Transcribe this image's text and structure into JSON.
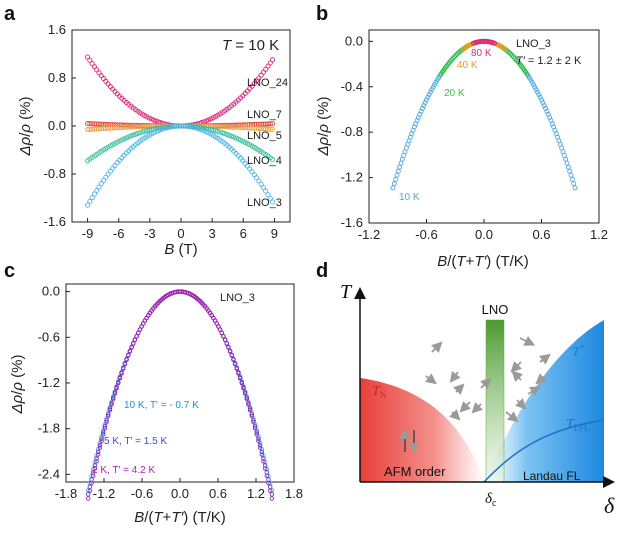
{
  "panels": {
    "a": "a",
    "b": "b",
    "c": "c",
    "d": "d"
  },
  "chart_data": [
    {
      "type": "scatter",
      "panel": "a",
      "xlabel_text": "B (T)",
      "ylabel_text": "Δρ/ρ (%)",
      "xticks": [
        "-9",
        "-6",
        "-3",
        "0",
        "3",
        "6",
        "9"
      ],
      "yticks": [
        "-1.6",
        "-0.8",
        "0.0",
        "0.8",
        "1.6"
      ],
      "xlim": [
        -10.5,
        10.5
      ],
      "ylim": [
        -1.6,
        1.6
      ],
      "annotation": "T = 10 K",
      "series": [
        {
          "name": "LNO_24",
          "color": "#e0267a",
          "value_at_9T": 1.15
        },
        {
          "name": "LNO_7",
          "color": "#e0483a",
          "value_at_9T": 0.04
        },
        {
          "name": "LNO_5",
          "color": "#e8a24a",
          "value_at_9T": -0.06
        },
        {
          "name": "LNO_4",
          "color": "#3cbf9a",
          "value_at_9T": -0.58
        },
        {
          "name": "LNO_3",
          "color": "#4fb4e8",
          "value_at_9T": -1.32
        }
      ]
    },
    {
      "type": "scatter",
      "panel": "b",
      "xlabel_text": "B/(T+T′) (T/K)",
      "ylabel_text": "Δρ/ρ (%)",
      "xticks": [
        "-1.2",
        "-0.6",
        "0.0",
        "0.6",
        "1.2"
      ],
      "yticks": [
        "0.0",
        "-0.4",
        "-0.8",
        "-1.2",
        "-1.6"
      ],
      "xlim": [
        -1.2,
        1.2
      ],
      "ylim": [
        -1.6,
        0.1
      ],
      "sample": "LNO_3",
      "annotation": "T′ = 1.2 ± 2 K",
      "series": [
        {
          "name": "10 K",
          "color": "#4fa8e0",
          "x_range": [
            -0.95,
            0.95
          ]
        },
        {
          "name": "20 K",
          "color": "#3cc44a",
          "x_range": [
            -0.45,
            0.45
          ]
        },
        {
          "name": "40 K",
          "color": "#e8a020",
          "x_range": [
            -0.22,
            0.22
          ]
        },
        {
          "name": "80 K",
          "color": "#e0267a",
          "x_range": [
            -0.11,
            0.11
          ]
        }
      ],
      "curve_coeff": -1.43
    },
    {
      "type": "scatter",
      "panel": "c",
      "xlabel_text": "B/(T+T′) (T/K)",
      "ylabel_text": "Δρ/ρ (%)",
      "xticks": [
        "-1.8",
        "-1.2",
        "-0.6",
        "0.0",
        "0.6",
        "1.2",
        "1.8"
      ],
      "yticks": [
        "0.0",
        "-0.6",
        "-1.2",
        "-1.8",
        "-2.4"
      ],
      "xlim": [
        -1.8,
        1.8
      ],
      "ylim": [
        -2.5,
        0.1
      ],
      "sample": "LNO_3",
      "series": [
        {
          "name": "10 K, T′ = - 0.7 K",
          "color": "#4fb4e8",
          "x_range": [
            -1.45,
            1.45
          ]
        },
        {
          "name": "5 K, T′ = 1.5 K",
          "color": "#3a4ec8",
          "x_range": [
            -1.45,
            1.45
          ]
        },
        {
          "name": "2 K, T′ = 4.2 K",
          "color": "#b020b0",
          "x_range": [
            -1.45,
            1.45
          ]
        }
      ],
      "curve_coeff": -1.24
    }
  ],
  "diagram": {
    "panel": "d",
    "y_axis_label": "T",
    "x_axis_label": "δ",
    "critical_label": "δc",
    "lno_label": "LNO",
    "tn_label": "TN",
    "tstar_label": "T*",
    "tlfl_label": "TLFL",
    "afm_label": "AFM order",
    "fl_label": "Landau FL",
    "colors": {
      "afm": "#e8403c",
      "fl": "#1e88e0",
      "lno_bar": "#5aaa3a",
      "tn_text": "#d0202a",
      "tstar_text": "#1e80d0",
      "arrows": "#9a9a9a"
    }
  }
}
